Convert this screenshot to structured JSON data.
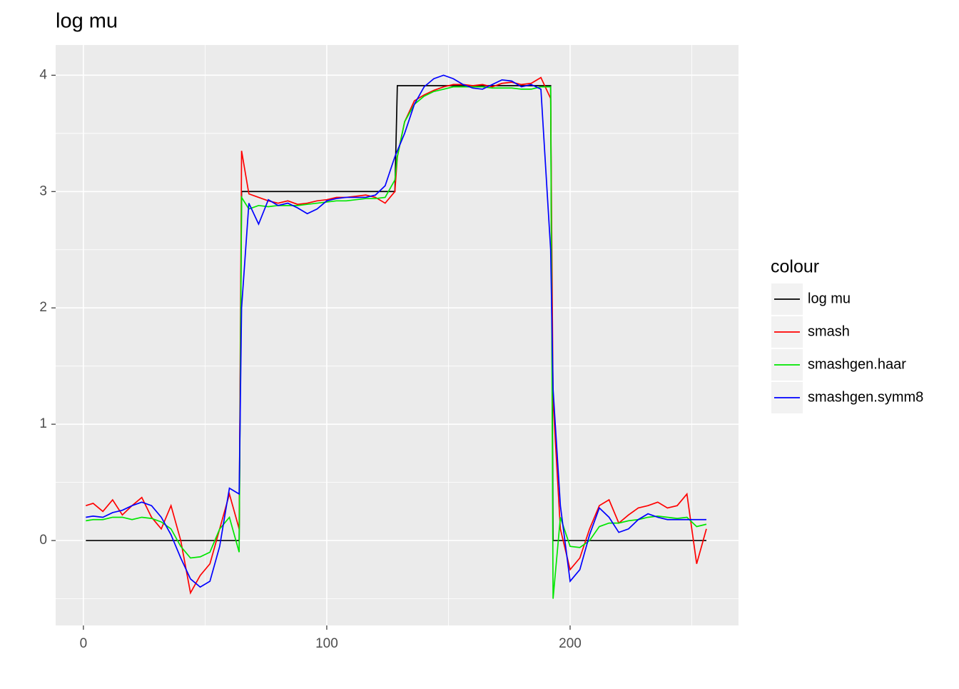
{
  "chart_data": {
    "type": "line",
    "title": "log mu",
    "x": [
      1,
      4,
      8,
      12,
      16,
      20,
      24,
      28,
      32,
      36,
      40,
      44,
      48,
      52,
      56,
      60,
      64,
      65,
      68,
      72,
      76,
      80,
      84,
      88,
      92,
      96,
      100,
      104,
      108,
      112,
      116,
      120,
      124,
      128,
      129,
      132,
      136,
      140,
      144,
      148,
      152,
      156,
      160,
      164,
      168,
      172,
      176,
      180,
      184,
      188,
      192,
      193,
      196,
      200,
      204,
      208,
      212,
      216,
      220,
      224,
      228,
      232,
      236,
      240,
      244,
      248,
      252,
      256
    ],
    "series": [
      {
        "name": "log mu",
        "color": "#000000",
        "values": [
          0,
          0,
          0,
          0,
          0,
          0,
          0,
          0,
          0,
          0,
          0,
          0,
          0,
          0,
          0,
          0,
          0,
          3,
          3,
          3,
          3,
          3,
          3,
          3,
          3,
          3,
          3,
          3,
          3,
          3,
          3,
          3,
          3,
          3,
          3.91,
          3.91,
          3.91,
          3.91,
          3.91,
          3.91,
          3.91,
          3.91,
          3.91,
          3.91,
          3.91,
          3.91,
          3.91,
          3.91,
          3.91,
          3.91,
          3.91,
          0,
          0,
          0,
          0,
          0,
          0,
          0,
          0,
          0,
          0,
          0,
          0,
          0,
          0,
          0,
          0,
          0
        ]
      },
      {
        "name": "smash",
        "color": "#ff0000",
        "values": [
          0.3,
          0.32,
          0.25,
          0.35,
          0.22,
          0.3,
          0.37,
          0.2,
          0.1,
          0.3,
          0.0,
          -0.45,
          -0.3,
          -0.2,
          0.1,
          0.4,
          0.1,
          3.35,
          2.98,
          2.95,
          2.92,
          2.9,
          2.92,
          2.89,
          2.9,
          2.92,
          2.93,
          2.95,
          2.95,
          2.96,
          2.97,
          2.95,
          2.9,
          3.0,
          3.3,
          3.6,
          3.78,
          3.83,
          3.87,
          3.9,
          3.92,
          3.92,
          3.91,
          3.92,
          3.9,
          3.93,
          3.94,
          3.92,
          3.93,
          3.98,
          3.8,
          1.2,
          0.1,
          -0.25,
          -0.15,
          0.1,
          0.3,
          0.35,
          0.15,
          0.22,
          0.28,
          0.3,
          0.33,
          0.28,
          0.3,
          0.4,
          -0.2,
          0.1
        ]
      },
      {
        "name": "smashgen.haar",
        "color": "#00e600",
        "values": [
          0.17,
          0.18,
          0.18,
          0.2,
          0.2,
          0.18,
          0.2,
          0.19,
          0.16,
          0.1,
          -0.05,
          -0.15,
          -0.14,
          -0.1,
          0.1,
          0.2,
          -0.1,
          2.95,
          2.85,
          2.88,
          2.87,
          2.88,
          2.88,
          2.88,
          2.89,
          2.9,
          2.91,
          2.92,
          2.92,
          2.93,
          2.94,
          2.94,
          2.95,
          3.1,
          3.3,
          3.6,
          3.75,
          3.82,
          3.86,
          3.88,
          3.9,
          3.9,
          3.9,
          3.9,
          3.89,
          3.89,
          3.89,
          3.88,
          3.88,
          3.9,
          3.9,
          -0.5,
          0.2,
          -0.05,
          -0.06,
          0.0,
          0.12,
          0.15,
          0.15,
          0.17,
          0.18,
          0.2,
          0.21,
          0.2,
          0.19,
          0.2,
          0.12,
          0.14
        ]
      },
      {
        "name": "smashgen.symm8",
        "color": "#0000ff",
        "values": [
          0.2,
          0.21,
          0.2,
          0.24,
          0.26,
          0.3,
          0.33,
          0.3,
          0.2,
          0.05,
          -0.15,
          -0.33,
          -0.4,
          -0.35,
          -0.05,
          0.45,
          0.4,
          2.0,
          2.9,
          2.72,
          2.93,
          2.88,
          2.9,
          2.86,
          2.81,
          2.85,
          2.92,
          2.94,
          2.95,
          2.95,
          2.95,
          2.97,
          3.05,
          3.3,
          3.35,
          3.5,
          3.75,
          3.9,
          3.97,
          4.0,
          3.97,
          3.92,
          3.89,
          3.88,
          3.92,
          3.96,
          3.95,
          3.9,
          3.92,
          3.88,
          2.5,
          1.3,
          0.3,
          -0.35,
          -0.25,
          0.05,
          0.28,
          0.2,
          0.07,
          0.1,
          0.18,
          0.23,
          0.2,
          0.18,
          0.18,
          0.18,
          0.18,
          0.18
        ]
      }
    ],
    "xlim": [
      -11.4,
      269.2
    ],
    "ylim": [
      -0.73,
      4.26
    ],
    "xticks": [
      0,
      100,
      200
    ],
    "yticks": [
      0,
      1,
      2,
      3,
      4
    ],
    "grid": true,
    "legend_title": "colour",
    "legend": "right"
  }
}
